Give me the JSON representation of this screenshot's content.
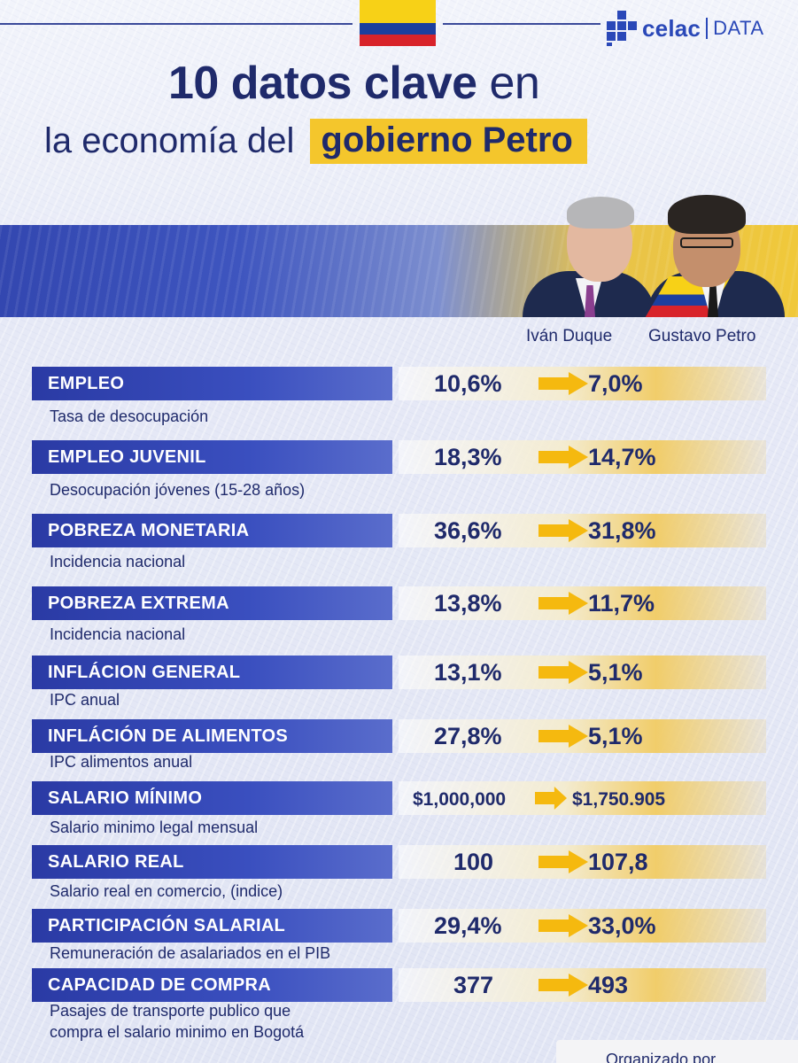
{
  "header": {
    "logo": {
      "name": "celac",
      "suffix": "DATA",
      "brand_color": "#2a48b8"
    },
    "title_line1_bold": "10 datos clave",
    "title_line1_light": "en",
    "title_line2_light": "la economía del",
    "title_line2_highlight": "gobierno Petro",
    "highlight_color": "#f4c62c"
  },
  "people": {
    "before": "Iván Duque",
    "after": "Gustavo Petro"
  },
  "rows": [
    {
      "label": "EMPLEO",
      "sub": "Tasa de desocupación",
      "before": "10,6%",
      "after": "7,0%"
    },
    {
      "label": "EMPLEO JUVENIL",
      "sub": "Desocupación jóvenes (15-28 años)",
      "before": "18,3%",
      "after": "14,7%"
    },
    {
      "label": "POBREZA MONETARIA",
      "sub": "Incidencia nacional",
      "before": "36,6%",
      "after": "31,8%"
    },
    {
      "label": "POBREZA EXTREMA",
      "sub": "Incidencia nacional",
      "before": "13,8%",
      "after": "11,7%"
    },
    {
      "label": "INFLÁCION GENERAL",
      "sub": "IPC anual",
      "before": "13,1%",
      "after": "5,1%"
    },
    {
      "label": "INFLÁCIÓN DE ALIMENTOS",
      "sub": "IPC alimentos anual",
      "before": "27,8%",
      "after": "5,1%"
    },
    {
      "label": "SALARIO MÍNIMO",
      "sub": "Salario minimo legal mensual",
      "before": "$1,000,000",
      "after": "$1,750.905"
    },
    {
      "label": "SALARIO REAL",
      "sub": "Salario real en comercio, (indice)",
      "before": "100",
      "after": "107,8"
    },
    {
      "label": "PARTICIPACIÓN SALARIAL",
      "sub": "Remuneración de asalariados en el PIB",
      "before": "29,4%",
      "after": "33,0%"
    },
    {
      "label": "CAPACIDAD DE COMPRA",
      "sub": "Pasajes de transporte publico que",
      "sub2": "compra el salario minimo en Bogotá",
      "before": "377",
      "after": "493"
    }
  ],
  "footer": {
    "text": "Organizado por"
  },
  "colors": {
    "navy": "#1f2a6b",
    "label_blue": "#2a3aa4",
    "arrow_yellow": "#f5b90f",
    "flag_yellow": "#f7d117",
    "flag_blue": "#1c3f9e",
    "flag_red": "#d8232a"
  }
}
